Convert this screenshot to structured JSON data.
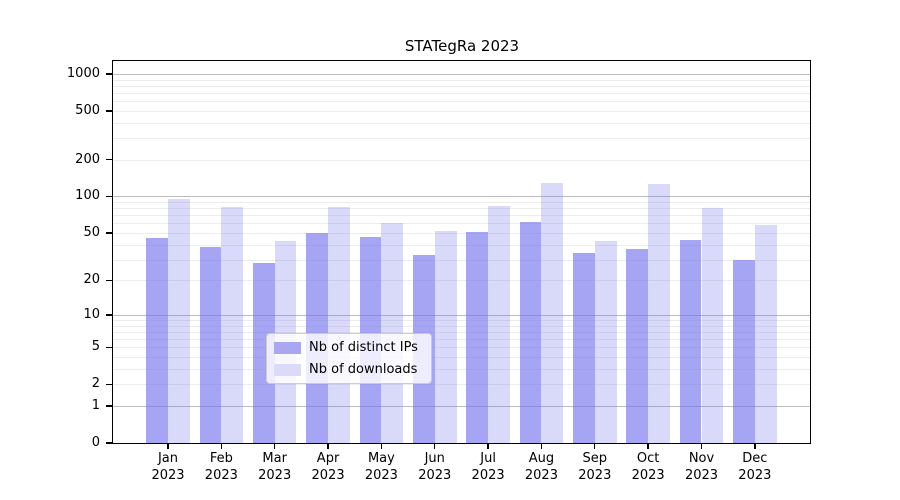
{
  "title": "STATegRa 2023",
  "chart_data": {
    "type": "bar",
    "title": "STATegRa 2023",
    "xlabel": "",
    "ylabel": "",
    "y_scale": "log10(value+1)",
    "ylim": [
      0,
      1270
    ],
    "grid": true,
    "legend_position": "inside-bottom-center",
    "x_labels": {
      "months": [
        "Jan",
        "Feb",
        "Mar",
        "Apr",
        "May",
        "Jun",
        "Jul",
        "Aug",
        "Sep",
        "Oct",
        "Nov",
        "Dec"
      ],
      "year": "2023"
    },
    "y_ticks": [
      0,
      1,
      2,
      5,
      10,
      20,
      50,
      100,
      200,
      500,
      1000
    ],
    "y_major_gridlines": [
      1,
      10,
      100,
      1000
    ],
    "y_minor_gridlines": [
      2,
      3,
      4,
      5,
      6,
      7,
      8,
      9,
      20,
      30,
      40,
      50,
      60,
      70,
      80,
      90,
      200,
      300,
      400,
      500,
      600,
      700,
      800,
      900
    ],
    "series": [
      {
        "name": "Nb of distinct IPs",
        "color": "rgba(110,110,235,0.62)",
        "swatch_color": "#a7a7f2",
        "values": [
          45,
          38,
          28,
          50,
          46,
          33,
          51,
          62,
          34,
          37,
          44,
          30
        ]
      },
      {
        "name": "Nb of downloads",
        "color": "rgba(110,110,235,0.26)",
        "swatch_color": "#dbdbf8",
        "values": [
          95,
          82,
          43,
          82,
          61,
          52,
          84,
          130,
          43,
          126,
          80,
          58
        ]
      }
    ]
  },
  "colors": {
    "major_grid": "#bdbdbd",
    "minor_grid": "#ececec",
    "axis": "#000000",
    "background": "#ffffff",
    "legend_border": "#cccccc",
    "legend_bg": "rgba(255,255,255,0.8)"
  }
}
